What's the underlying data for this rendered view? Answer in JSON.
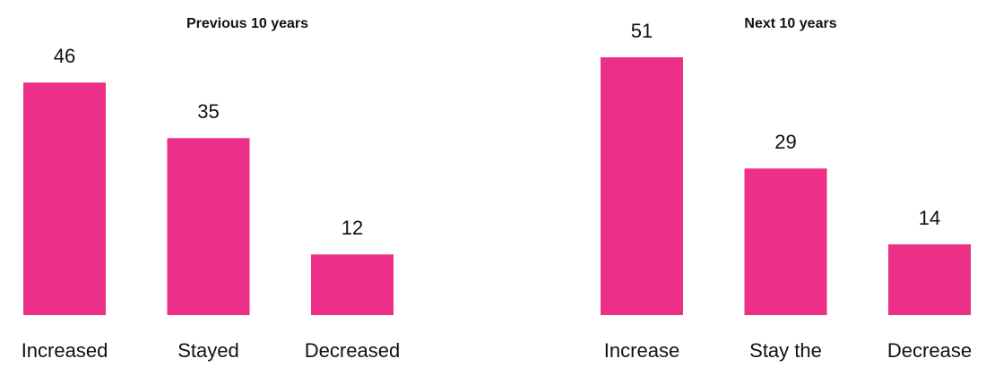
{
  "chart_data": [
    {
      "type": "bar",
      "title": "Previous 10 years",
      "categories": [
        "Increased",
        "Stayed",
        "Decreased"
      ],
      "values": [
        46,
        35,
        12
      ],
      "color": "#ec2f87"
    },
    {
      "type": "bar",
      "title": "Next 10 years",
      "categories": [
        "Increase",
        "Stay the",
        "Decrease"
      ],
      "values": [
        51,
        29,
        14
      ],
      "color": "#ec2f87"
    }
  ]
}
